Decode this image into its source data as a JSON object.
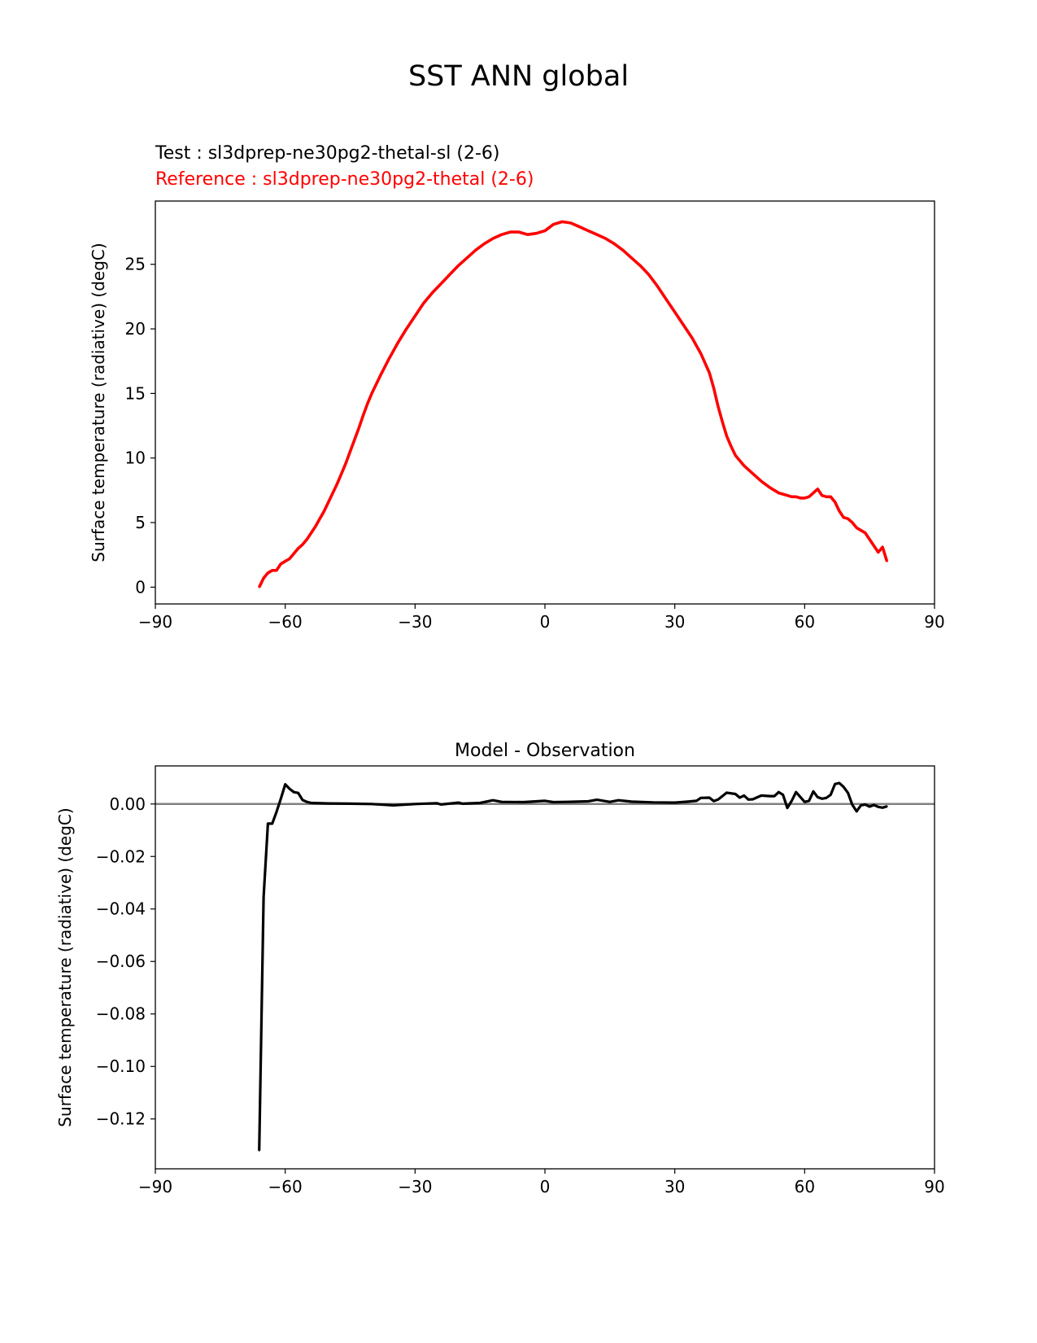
{
  "figure": {
    "title": "SST ANN global",
    "test_label": "Test : sl3dprep-ne30pg2-thetal-sl (2-6)",
    "reference_label": "Reference : sl3dprep-ne30pg2-thetal (2-6)"
  },
  "colors": {
    "test": "#000000",
    "reference": "#ff0000",
    "zero_line": "#808080"
  },
  "chart_data": [
    {
      "type": "line",
      "title": "",
      "xlabel": "",
      "ylabel": "Surface temperature (radiative) (degC)",
      "xlim": [
        -90,
        90
      ],
      "ylim": [
        -1.3,
        29.9
      ],
      "xticks": [
        -90,
        -60,
        -30,
        0,
        30,
        60,
        90
      ],
      "xtick_labels": [
        "−90",
        "−60",
        "−30",
        "0",
        "30",
        "60",
        "90"
      ],
      "yticks": [
        0,
        5,
        10,
        15,
        20,
        25
      ],
      "ytick_labels": [
        "0",
        "5",
        "10",
        "15",
        "20",
        "25"
      ],
      "grid": false,
      "series": [
        {
          "color": "#ff0000",
          "x": [
            -66,
            -65,
            -64,
            -63,
            -62,
            -61,
            -60,
            -59,
            -58,
            -57,
            -56,
            -55,
            -54,
            -53,
            -52,
            -51,
            -50,
            -49,
            -48,
            -47,
            -46,
            -45,
            -44,
            -43,
            -42,
            -41,
            -40,
            -38,
            -36,
            -34,
            -32,
            -30,
            -28,
            -26,
            -24,
            -22,
            -20,
            -18,
            -16,
            -14,
            -12,
            -10,
            -8,
            -6,
            -4,
            -2,
            0,
            2,
            4,
            6,
            8,
            10,
            12,
            14,
            16,
            18,
            20,
            22,
            24,
            26,
            28,
            30,
            32,
            34,
            36,
            38,
            39,
            40,
            41,
            42,
            43,
            44,
            46,
            48,
            50,
            52,
            54,
            55,
            56,
            57,
            58,
            59,
            60,
            61,
            62,
            63,
            64,
            65,
            66,
            67,
            68,
            69,
            70,
            71,
            72,
            73,
            74,
            75,
            76,
            77,
            78,
            79
          ],
          "y": [
            0.0,
            0.7,
            1.1,
            1.3,
            1.3,
            1.8,
            2.0,
            2.2,
            2.6,
            3.0,
            3.3,
            3.7,
            4.2,
            4.7,
            5.3,
            5.9,
            6.6,
            7.3,
            8.0,
            8.8,
            9.6,
            10.5,
            11.4,
            12.3,
            13.3,
            14.2,
            15.0,
            16.4,
            17.7,
            18.9,
            20.0,
            21.0,
            22.0,
            22.8,
            23.5,
            24.2,
            24.9,
            25.5,
            26.1,
            26.6,
            27.0,
            27.3,
            27.5,
            27.5,
            27.3,
            27.4,
            27.6,
            28.1,
            28.3,
            28.2,
            27.9,
            27.6,
            27.3,
            27.0,
            26.6,
            26.1,
            25.5,
            24.9,
            24.2,
            23.3,
            22.3,
            21.3,
            20.3,
            19.3,
            18.1,
            16.6,
            15.4,
            14.0,
            12.8,
            11.7,
            10.9,
            10.2,
            9.4,
            8.8,
            8.2,
            7.7,
            7.3,
            7.2,
            7.1,
            7.0,
            7.0,
            6.9,
            6.9,
            7.0,
            7.3,
            7.6,
            7.1,
            7.0,
            7.0,
            6.6,
            5.9,
            5.4,
            5.3,
            5.0,
            4.6,
            4.4,
            4.2,
            3.7,
            3.2,
            2.7,
            3.1,
            2.0
          ]
        }
      ]
    },
    {
      "type": "line",
      "title": "Model - Observation",
      "xlabel": "",
      "ylabel": "Surface temperature (radiative) (degC)",
      "xlim": [
        -90,
        90
      ],
      "ylim": [
        -0.139,
        0.0145
      ],
      "xticks": [
        -90,
        -60,
        -30,
        0,
        30,
        60,
        90
      ],
      "xtick_labels": [
        "−90",
        "−60",
        "−30",
        "0",
        "30",
        "60",
        "90"
      ],
      "yticks": [
        0.0,
        -0.02,
        -0.04,
        -0.06,
        -0.08,
        -0.1,
        -0.12
      ],
      "ytick_labels": [
        "0.00",
        "−0.02",
        "−0.04",
        "−0.06",
        "−0.08",
        "−0.10",
        "−0.12"
      ],
      "grid": false,
      "reference_line": 0,
      "series": [
        {
          "color": "#000000",
          "x": [
            -66,
            -65,
            -64,
            -63,
            -62,
            -61,
            -60,
            -59,
            -58,
            -57,
            -56,
            -55,
            -54,
            -50,
            -45,
            -40,
            -35,
            -30,
            -25,
            -24,
            -20,
            -19,
            -15,
            -12,
            -10,
            -5,
            0,
            2,
            5,
            10,
            12,
            15,
            17,
            20,
            25,
            30,
            33,
            35,
            36,
            38,
            39,
            40,
            42,
            44,
            45,
            46,
            47,
            48,
            50,
            52,
            53,
            54,
            55,
            56,
            57,
            58,
            60,
            61,
            62,
            63,
            64,
            65,
            66,
            67,
            68,
            69,
            70,
            71,
            72,
            73,
            74,
            75,
            76,
            77,
            78,
            79
          ],
          "y": [
            -0.132,
            -0.0355,
            -0.0075,
            -0.0075,
            -0.003,
            0.002,
            0.0075,
            0.0058,
            0.0045,
            0.0042,
            0.0015,
            0.0008,
            0.0004,
            0.0002,
            0.0001,
            0.0,
            -0.0005,
            0.0,
            0.0003,
            -0.0002,
            0.0005,
            0.0001,
            0.0004,
            0.0014,
            0.0008,
            0.0007,
            0.0012,
            0.0007,
            0.0008,
            0.001,
            0.0016,
            0.0008,
            0.0014,
            0.0009,
            0.0006,
            0.0005,
            0.0009,
            0.0012,
            0.0023,
            0.0024,
            0.0011,
            0.0017,
            0.0043,
            0.0038,
            0.0024,
            0.0032,
            0.0017,
            0.0018,
            0.0032,
            0.003,
            0.003,
            0.0045,
            0.0035,
            -0.0015,
            0.0012,
            0.0045,
            0.0008,
            0.0012,
            0.0048,
            0.0026,
            0.002,
            0.0023,
            0.0035,
            0.0076,
            0.008,
            0.0065,
            0.0042,
            -0.0003,
            -0.0028,
            -0.0005,
            -0.0002,
            -0.001,
            -0.0004,
            -0.0011,
            -0.0014,
            -0.0009
          ]
        }
      ]
    }
  ]
}
